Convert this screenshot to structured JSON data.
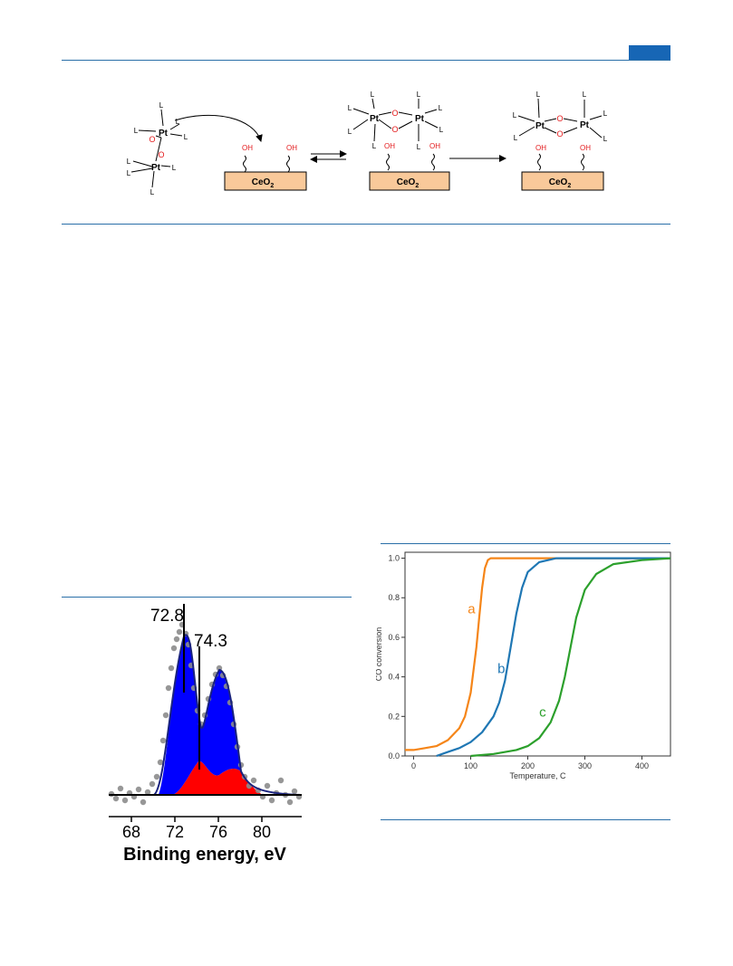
{
  "scheme": {
    "ligand": "L",
    "pt": "Pt",
    "oxygen": "O",
    "hydroxyl": "OH",
    "support": "CeO",
    "support_sub": "2"
  },
  "xps": {
    "peak1_label": "72.8",
    "peak2_label": "74.3",
    "xlabel": "Binding energy, eV",
    "ticks": [
      "68",
      "72",
      "76",
      "80"
    ]
  },
  "chart_data": {
    "type": "line",
    "xlabel": "Temperature, C",
    "ylabel": "CO conversion",
    "xlim": [
      -15,
      450
    ],
    "ylim": [
      0,
      1.03
    ],
    "xticks": [
      0,
      100,
      200,
      300,
      400
    ],
    "yticks": [
      0.0,
      0.2,
      0.4,
      0.6,
      0.8,
      1.0
    ],
    "ytick_labels": [
      "0.0",
      "0.2",
      "0.4",
      "0.6",
      "0.8",
      "1.0"
    ],
    "grid": false,
    "series": [
      {
        "name": "a",
        "color": "#f58518",
        "x": [
          -15,
          0,
          20,
          40,
          60,
          80,
          90,
          100,
          110,
          115,
          120,
          125,
          130,
          135,
          140,
          160,
          200,
          300,
          450
        ],
        "y": [
          0.03,
          0.03,
          0.04,
          0.05,
          0.08,
          0.14,
          0.2,
          0.32,
          0.55,
          0.7,
          0.85,
          0.95,
          0.99,
          1.0,
          1.0,
          1.0,
          1.0,
          1.0,
          1.0
        ]
      },
      {
        "name": "b",
        "color": "#1f77b4",
        "x": [
          40,
          60,
          80,
          100,
          120,
          140,
          150,
          160,
          170,
          180,
          190,
          200,
          220,
          250,
          300,
          450
        ],
        "y": [
          0.0,
          0.02,
          0.04,
          0.07,
          0.12,
          0.2,
          0.27,
          0.38,
          0.55,
          0.72,
          0.85,
          0.93,
          0.98,
          1.0,
          1.0,
          1.0
        ],
        "label_pos": [
          145,
          0.42
        ]
      },
      {
        "name": "c",
        "color": "#2ca02c",
        "x": [
          100,
          140,
          180,
          200,
          220,
          240,
          255,
          265,
          275,
          285,
          300,
          320,
          350,
          400,
          450
        ],
        "y": [
          0.0,
          0.01,
          0.03,
          0.05,
          0.09,
          0.17,
          0.28,
          0.4,
          0.55,
          0.7,
          0.84,
          0.92,
          0.97,
          0.99,
          1.0
        ]
      }
    ]
  }
}
